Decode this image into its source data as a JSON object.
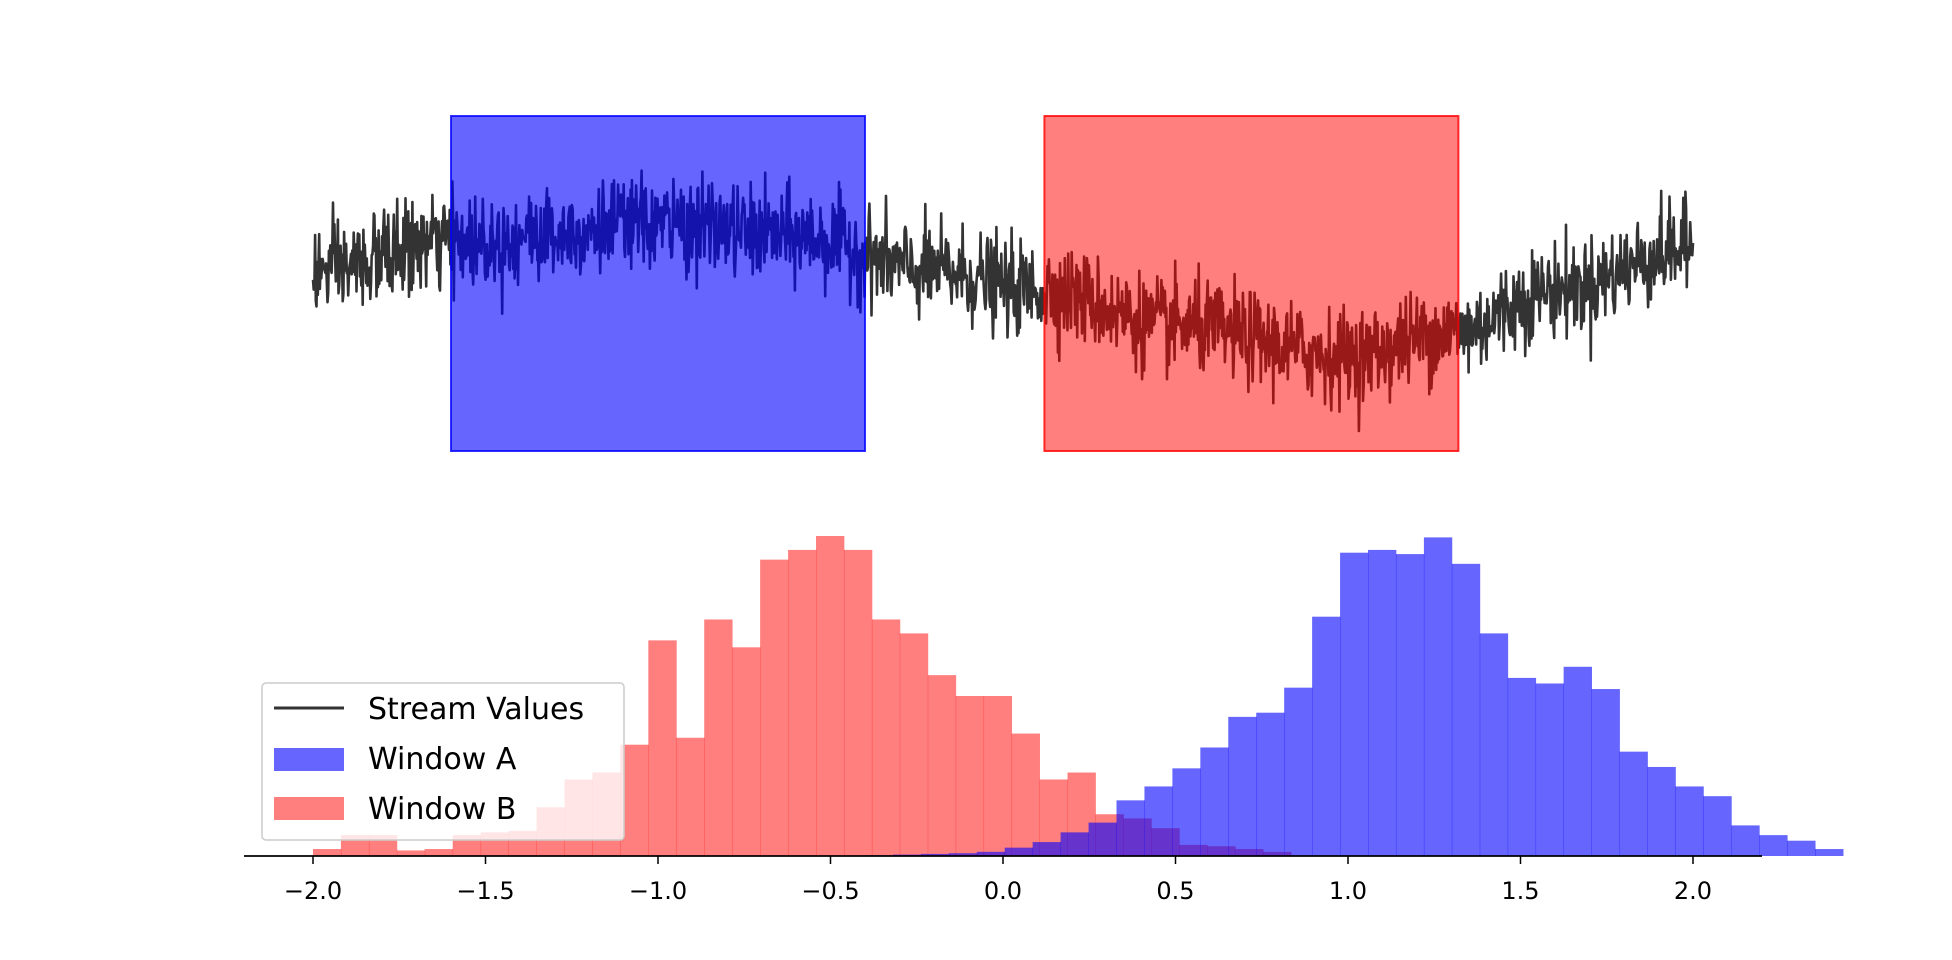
{
  "chart_data": {
    "type": "histogram",
    "xlim": [
      -2.2,
      2.2
    ],
    "x_ticks": [
      -2.0,
      -1.5,
      -1.0,
      -0.5,
      0.0,
      0.5,
      1.0,
      1.5,
      2.0
    ],
    "x_tick_labels": [
      "−2.0",
      "−1.5",
      "−1.0",
      "−0.5",
      "0.0",
      "0.5",
      "1.0",
      "1.5",
      "2.0"
    ],
    "stream": {
      "name": "Stream Values",
      "color": "#333333",
      "x_range": [
        -2.0,
        2.0
      ],
      "num_points": 2000,
      "trend_knots": {
        "x": [
          -2.0,
          -1.6,
          -1.0,
          -0.6,
          -0.2,
          0.1,
          0.5,
          1.0,
          1.3,
          1.6,
          2.0
        ],
        "y": [
          0.15,
          0.4,
          0.55,
          0.45,
          0.15,
          0.0,
          -0.3,
          -0.55,
          -0.35,
          0.0,
          0.35
        ]
      },
      "noise_amplitude": 0.38
    },
    "windows": [
      {
        "name": "Window A",
        "x_start": -1.6,
        "x_end": -0.4,
        "color": "#0000ff",
        "alpha": 0.6
      },
      {
        "name": "Window B",
        "x_start": 0.12,
        "x_end": 1.32,
        "color": "#ff0000",
        "alpha": 0.5
      }
    ],
    "histograms": {
      "bin_width": 0.081,
      "Window A": {
        "color": "#0000ff",
        "alpha": 0.6,
        "bins_start": -0.4,
        "counts": [
          0.5,
          1,
          1.5,
          2,
          3,
          6,
          10,
          17,
          24,
          40,
          50,
          63,
          78,
          100,
          103,
          121,
          172,
          218,
          220,
          217,
          229,
          210,
          160,
          128,
          124,
          136,
          120,
          75,
          64,
          50,
          43,
          22,
          15,
          11,
          5
        ]
      },
      "Window B": {
        "color": "#ff0000",
        "alpha": 0.5,
        "bins_start": -2.0,
        "counts": [
          5,
          15,
          15,
          4,
          5,
          15,
          17,
          18,
          35,
          55,
          60,
          80,
          155,
          85,
          170,
          150,
          213,
          220,
          230,
          220,
          170,
          160,
          130,
          115,
          115,
          88,
          55,
          60,
          30,
          27,
          20,
          8,
          7,
          5,
          3
        ]
      }
    },
    "legend": {
      "placement": "lower-left",
      "entries": [
        {
          "label": "Stream Values",
          "kind": "line",
          "color": "#333333"
        },
        {
          "label": "Window A",
          "kind": "patch",
          "color": "#0000ff",
          "alpha": 0.6
        },
        {
          "label": "Window B",
          "kind": "patch",
          "color": "#ff0000",
          "alpha": 0.5
        }
      ]
    }
  }
}
